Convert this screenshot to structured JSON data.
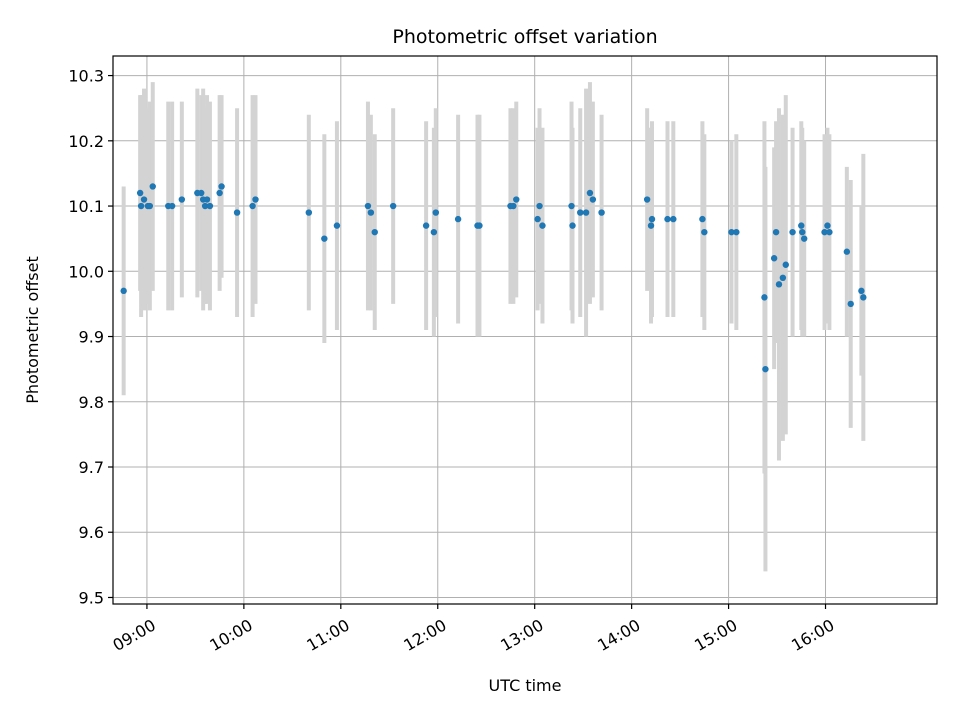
{
  "chart_data": {
    "type": "scatter",
    "title": "Photometric offset variation",
    "xlabel": "UTC time",
    "ylabel": "Photometric offset",
    "x_unit": "hours UTC",
    "xlim": [
      8.65,
      17.15
    ],
    "ylim": [
      9.49,
      10.33
    ],
    "x_ticks": [
      {
        "value": 9,
        "label": "09:00"
      },
      {
        "value": 10,
        "label": "10:00"
      },
      {
        "value": 11,
        "label": "11:00"
      },
      {
        "value": 12,
        "label": "12:00"
      },
      {
        "value": 13,
        "label": "13:00"
      },
      {
        "value": 14,
        "label": "14:00"
      },
      {
        "value": 15,
        "label": "15:00"
      },
      {
        "value": 16,
        "label": "16:00"
      }
    ],
    "y_ticks": [
      {
        "value": 9.5,
        "label": "9.5"
      },
      {
        "value": 9.6,
        "label": "9.6"
      },
      {
        "value": 9.7,
        "label": "9.7"
      },
      {
        "value": 9.8,
        "label": "9.8"
      },
      {
        "value": 9.9,
        "label": "9.9"
      },
      {
        "value": 10.0,
        "label": "10.0"
      },
      {
        "value": 10.1,
        "label": "10.1"
      },
      {
        "value": 10.2,
        "label": "10.2"
      },
      {
        "value": 10.3,
        "label": "10.3"
      }
    ],
    "grid": true,
    "colors": {
      "point": "#1f77b4",
      "errorbar": "#d3d3d3"
    },
    "series": [
      {
        "x": [
          8.76,
          8.93,
          8.94,
          8.97,
          9.01,
          9.03,
          9.06,
          9.22,
          9.26,
          9.36,
          9.52,
          9.56,
          9.58,
          9.6,
          9.62,
          9.65,
          9.75,
          9.77,
          9.93,
          10.09,
          10.12,
          10.67,
          10.83,
          10.96,
          11.28,
          11.31,
          11.35,
          11.54,
          11.88,
          11.96,
          11.98,
          12.21,
          12.41,
          12.43,
          12.75,
          12.78,
          12.81,
          13.03,
          13.05,
          13.08,
          13.38,
          13.39,
          13.47,
          13.53,
          13.57,
          13.6,
          13.69,
          14.16,
          14.2,
          14.21,
          14.37,
          14.43,
          14.73,
          14.75,
          15.03,
          15.08,
          15.37,
          15.38,
          15.47,
          15.49,
          15.52,
          15.56,
          15.59,
          15.66,
          15.75,
          15.76,
          15.78,
          15.99,
          16.02,
          16.04,
          16.22,
          16.26,
          16.37,
          16.39
        ],
        "y": [
          9.97,
          10.12,
          10.1,
          10.11,
          10.1,
          10.1,
          10.13,
          10.1,
          10.1,
          10.11,
          10.12,
          10.12,
          10.11,
          10.1,
          10.11,
          10.1,
          10.12,
          10.13,
          10.09,
          10.1,
          10.11,
          10.09,
          10.05,
          10.07,
          10.1,
          10.09,
          10.06,
          10.1,
          10.07,
          10.06,
          10.09,
          10.08,
          10.07,
          10.07,
          10.1,
          10.1,
          10.11,
          10.08,
          10.1,
          10.07,
          10.1,
          10.07,
          10.09,
          10.09,
          10.12,
          10.11,
          10.09,
          10.11,
          10.07,
          10.08,
          10.08,
          10.08,
          10.08,
          10.06,
          10.06,
          10.06,
          9.96,
          9.85,
          10.02,
          10.06,
          9.98,
          9.99,
          10.01,
          10.06,
          10.07,
          10.06,
          10.05,
          10.06,
          10.07,
          10.06,
          10.03,
          9.95,
          9.97,
          9.96
        ],
        "err": [
          0.16,
          0.15,
          0.17,
          0.17,
          0.15,
          0.16,
          0.16,
          0.16,
          0.16,
          0.15,
          0.16,
          0.15,
          0.17,
          0.15,
          0.16,
          0.16,
          0.15,
          0.14,
          0.16,
          0.17,
          0.16,
          0.15,
          0.16,
          0.16,
          0.16,
          0.15,
          0.15,
          0.15,
          0.16,
          0.16,
          0.16,
          0.16,
          0.17,
          0.17,
          0.15,
          0.15,
          0.15,
          0.14,
          0.15,
          0.15,
          0.16,
          0.15,
          0.16,
          0.19,
          0.17,
          0.15,
          0.15,
          0.14,
          0.15,
          0.15,
          0.15,
          0.15,
          0.15,
          0.15,
          0.14,
          0.15,
          0.27,
          0.31,
          0.17,
          0.17,
          0.27,
          0.25,
          0.26,
          0.16,
          0.16,
          0.16,
          0.15,
          0.15,
          0.15,
          0.15,
          0.13,
          0.19,
          0.13,
          0.22
        ]
      }
    ]
  }
}
